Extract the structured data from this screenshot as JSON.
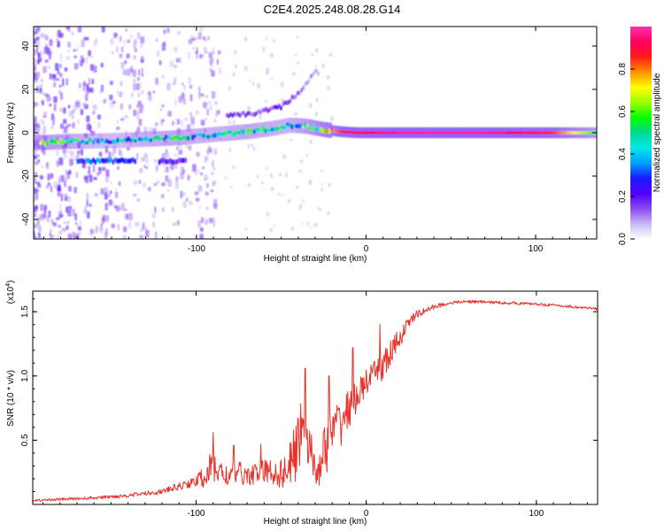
{
  "title": "C2E4.2025.248.08.28.G14",
  "chart_data": [
    {
      "type": "heatmap",
      "xlabel": "Height of straight line (km)",
      "ylabel": "Frequency (Hz)",
      "xlim": [
        -196,
        136
      ],
      "ylim": [
        -49,
        49
      ],
      "xticks": [
        -100,
        0,
        100
      ],
      "yticks": [
        -40,
        -20,
        0,
        20,
        40
      ],
      "colorbar": {
        "label": "Normalized spectral amplitude",
        "range": [
          0,
          1
        ],
        "ticks": [
          "0.0",
          "0.2",
          "0.4",
          "0.6",
          "0.8"
        ],
        "tick_values": [
          0.0,
          0.2,
          0.4,
          0.6,
          0.8
        ],
        "colors": [
          "#ffffff",
          "#c8b8f4",
          "#8a48f0",
          "#5000ff",
          "#1a1aff",
          "#00a0ff",
          "#00e8e8",
          "#00d890",
          "#00ff00",
          "#a0ff00",
          "#ffff00",
          "#ff9000",
          "#ff1a1a",
          "#ff0060",
          "#ff30b0"
        ]
      },
      "ridge_main": [
        {
          "x": -190,
          "f": -4.5,
          "a": 0.55
        },
        {
          "x": -175,
          "f": -4,
          "a": 0.5
        },
        {
          "x": -160,
          "f": -3.8,
          "a": 0.4
        },
        {
          "x": -145,
          "f": -3.5,
          "a": 0.4
        },
        {
          "x": -130,
          "f": -3,
          "a": 0.45
        },
        {
          "x": -115,
          "f": -2.5,
          "a": 0.5
        },
        {
          "x": -100,
          "f": -1.5,
          "a": 0.45
        },
        {
          "x": -85,
          "f": -0.5,
          "a": 0.45
        },
        {
          "x": -70,
          "f": 0.5,
          "a": 0.5
        },
        {
          "x": -55,
          "f": 2,
          "a": 0.45
        },
        {
          "x": -45,
          "f": 3.5,
          "a": 0.45
        },
        {
          "x": -35,
          "f": 3,
          "a": 0.55
        },
        {
          "x": -25,
          "f": 1.5,
          "a": 0.7
        },
        {
          "x": -15,
          "f": 0.5,
          "a": 0.85
        },
        {
          "x": -5,
          "f": 0,
          "a": 0.9
        },
        {
          "x": 10,
          "f": 0,
          "a": 0.95
        },
        {
          "x": 40,
          "f": 0,
          "a": 0.97
        },
        {
          "x": 80,
          "f": 0,
          "a": 0.95
        },
        {
          "x": 110,
          "f": 0,
          "a": 0.85
        },
        {
          "x": 133,
          "f": 0,
          "a": 0.6
        }
      ],
      "ridge_secondary": [
        {
          "x": -165,
          "f": -13,
          "a": 0.3
        },
        {
          "x": -150,
          "f": -13,
          "a": 0.3
        },
        {
          "x": -140,
          "f": -13,
          "a": 0.28
        },
        {
          "x": -115,
          "f": -13,
          "a": 0.22
        }
      ],
      "ridge_upper": [
        {
          "x": -80,
          "f": 8,
          "a": 0.15
        },
        {
          "x": -65,
          "f": 9,
          "a": 0.15
        },
        {
          "x": -50,
          "f": 12,
          "a": 0.18
        },
        {
          "x": -40,
          "f": 18,
          "a": 0.15
        },
        {
          "x": -30,
          "f": 28,
          "a": 0.08
        }
      ]
    },
    {
      "type": "line",
      "xlabel": "Height of straight line (km)",
      "ylabel": "SNR (10 * v/v)",
      "y_multiplier": "(x10^4)",
      "xlim": [
        -196,
        136
      ],
      "ylim": [
        0,
        1.66
      ],
      "xticks": [
        -100,
        0,
        100
      ],
      "yticks": [
        0.5,
        1.0,
        1.5
      ],
      "yticklabels": [
        "0.5",
        "1.0",
        "1.5"
      ],
      "color": "#e8322a",
      "x": [
        -196,
        -180,
        -160,
        -140,
        -120,
        -110,
        -100,
        -95,
        -90,
        -85,
        -80,
        -75,
        -70,
        -65,
        -60,
        -55,
        -50,
        -45,
        -40,
        -37,
        -35,
        -32,
        -30,
        -25,
        -20,
        -15,
        -10,
        -5,
        0,
        5,
        10,
        15,
        20,
        25,
        30,
        40,
        50,
        60,
        80,
        100,
        120,
        136
      ],
      "y": [
        0.03,
        0.04,
        0.05,
        0.07,
        0.1,
        0.14,
        0.18,
        0.22,
        0.3,
        0.24,
        0.22,
        0.25,
        0.22,
        0.24,
        0.26,
        0.25,
        0.24,
        0.3,
        0.45,
        0.7,
        0.55,
        0.4,
        0.22,
        0.4,
        0.55,
        0.65,
        0.75,
        0.85,
        0.95,
        1.02,
        1.08,
        1.18,
        1.3,
        1.42,
        1.48,
        1.54,
        1.57,
        1.58,
        1.57,
        1.56,
        1.54,
        1.52
      ],
      "noise": [
        0.01,
        0.01,
        0.012,
        0.015,
        0.02,
        0.03,
        0.04,
        0.1,
        0.14,
        0.1,
        0.08,
        0.09,
        0.08,
        0.08,
        0.1,
        0.1,
        0.12,
        0.18,
        0.28,
        0.28,
        0.22,
        0.15,
        0.12,
        0.2,
        0.22,
        0.2,
        0.15,
        0.12,
        0.1,
        0.1,
        0.12,
        0.12,
        0.08,
        0.04,
        0.03,
        0.02,
        0.012,
        0.012,
        0.012,
        0.01,
        0.012,
        0.012
      ],
      "spikes": [
        {
          "x": -90,
          "y": 0.56
        },
        {
          "x": -78,
          "y": 0.46
        },
        {
          "x": -62,
          "y": 0.47
        },
        {
          "x": -40,
          "y": 0.67
        },
        {
          "x": -36,
          "y": 1.06
        },
        {
          "x": -22,
          "y": 1.0
        },
        {
          "x": -8,
          "y": 1.22
        },
        {
          "x": 8,
          "y": 1.4
        },
        {
          "x": 16,
          "y": 1.28
        }
      ]
    }
  ]
}
